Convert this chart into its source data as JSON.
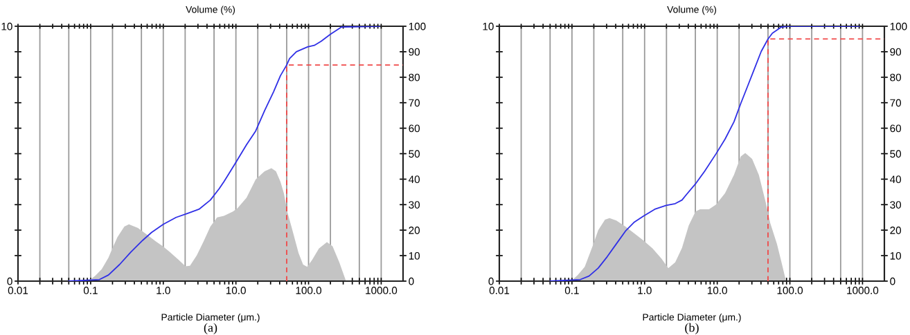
{
  "chart_data": [
    {
      "type": "area",
      "title": "Volume (%)",
      "xlabel": "Particle Diameter (μm.)",
      "annotations": [
        "(a)"
      ],
      "log": "x",
      "xlim": [
        0.01,
        2000
      ],
      "xticks": [
        {
          "value": 0.01,
          "label": "0.01"
        },
        {
          "value": 0.02,
          "label": null
        },
        {
          "value": 0.03,
          "label": null
        },
        {
          "value": 0.04,
          "label": null
        },
        {
          "value": 0.05,
          "label": null
        },
        {
          "value": 0.06,
          "label": null
        },
        {
          "value": 0.07,
          "label": null
        },
        {
          "value": 0.08,
          "label": null
        },
        {
          "value": 0.09,
          "label": null
        },
        {
          "value": 0.1,
          "label": "0.1"
        },
        {
          "value": 0.2,
          "label": null
        },
        {
          "value": 0.3,
          "label": null
        },
        {
          "value": 0.4,
          "label": null
        },
        {
          "value": 0.5,
          "label": null
        },
        {
          "value": 0.6,
          "label": null
        },
        {
          "value": 0.7,
          "label": null
        },
        {
          "value": 0.8,
          "label": null
        },
        {
          "value": 0.9,
          "label": null
        },
        {
          "value": 1,
          "label": "1.0"
        },
        {
          "value": 2,
          "label": null
        },
        {
          "value": 3,
          "label": null
        },
        {
          "value": 4,
          "label": null
        },
        {
          "value": 5,
          "label": null
        },
        {
          "value": 6,
          "label": null
        },
        {
          "value": 7,
          "label": null
        },
        {
          "value": 8,
          "label": null
        },
        {
          "value": 9,
          "label": null
        },
        {
          "value": 10,
          "label": "10.0"
        },
        {
          "value": 20,
          "label": null
        },
        {
          "value": 30,
          "label": null
        },
        {
          "value": 40,
          "label": null
        },
        {
          "value": 50,
          "label": null
        },
        {
          "value": 60,
          "label": null
        },
        {
          "value": 70,
          "label": null
        },
        {
          "value": 80,
          "label": null
        },
        {
          "value": 90,
          "label": null
        },
        {
          "value": 100,
          "label": "100.0"
        },
        {
          "value": 200,
          "label": null
        },
        {
          "value": 300,
          "label": null
        },
        {
          "value": 400,
          "label": null
        },
        {
          "value": 500,
          "label": null
        },
        {
          "value": 600,
          "label": null
        },
        {
          "value": 700,
          "label": null
        },
        {
          "value": 800,
          "label": null
        },
        {
          "value": 900,
          "label": null
        },
        {
          "value": 1000,
          "label": "1000.0"
        }
      ],
      "ylim": [
        0,
        10
      ],
      "yticks": [
        {
          "value": 0,
          "label": "0"
        },
        {
          "value": 1,
          "label": null
        },
        {
          "value": 2,
          "label": null
        },
        {
          "value": 3,
          "label": null
        },
        {
          "value": 4,
          "label": null
        },
        {
          "value": 5,
          "label": null
        },
        {
          "value": 6,
          "label": null
        },
        {
          "value": 7,
          "label": null
        },
        {
          "value": 8,
          "label": null
        },
        {
          "value": 9,
          "label": null
        },
        {
          "value": 10,
          "label": "10"
        }
      ],
      "y2lim": [
        0,
        100
      ],
      "y2ticks": [
        0,
        10,
        20,
        30,
        40,
        50,
        60,
        70,
        80,
        90,
        100
      ],
      "ref_lines": [
        {
          "axis": "x",
          "value": 0.02,
          "color": "#9a9a9a"
        },
        {
          "axis": "x",
          "value": 0.05,
          "color": "#9a9a9a"
        },
        {
          "axis": "x",
          "value": 0.1,
          "color": "#9a9a9a"
        },
        {
          "axis": "x",
          "value": 0.2,
          "color": "#9a9a9a"
        },
        {
          "axis": "x",
          "value": 0.5,
          "color": "#9a9a9a"
        },
        {
          "axis": "x",
          "value": 1,
          "color": "#9a9a9a"
        },
        {
          "axis": "x",
          "value": 2,
          "color": "#9a9a9a"
        },
        {
          "axis": "x",
          "value": 5,
          "color": "#9a9a9a"
        },
        {
          "axis": "x",
          "value": 10,
          "color": "#9a9a9a"
        },
        {
          "axis": "x",
          "value": 20,
          "color": "#9a9a9a"
        },
        {
          "axis": "x",
          "value": 50,
          "color": "#9a9a9a"
        },
        {
          "axis": "x",
          "value": 100,
          "color": "#9a9a9a"
        },
        {
          "axis": "x",
          "value": 200,
          "color": "#9a9a9a"
        },
        {
          "axis": "x",
          "value": 500,
          "color": "#9a9a9a"
        },
        {
          "axis": "x",
          "value": 1000,
          "color": "#9a9a9a"
        }
      ],
      "series": [
        {
          "color": "#c4c4c4",
          "x": [
            0.092,
            0.115,
            0.142,
            0.176,
            0.196,
            0.234,
            0.291,
            0.336,
            0.447,
            0.597,
            0.795,
            0.985,
            1.22,
            1.63,
            2.02,
            2.33,
            2.89,
            3.58,
            4.45,
            5.51,
            6.84,
            9.1,
            10.5,
            14.0,
            18.7,
            24.8,
            30.8,
            35.6,
            41,
            45.7,
            50.9,
            58.8,
            72.9,
            84.1,
            95.7,
            112,
            139,
            179,
            214,
            265,
            328
          ],
          "values": [
            0,
            0.2,
            0.47,
            0.92,
            1.24,
            1.73,
            2.14,
            2.23,
            2.09,
            1.82,
            1.55,
            1.37,
            1.15,
            0.83,
            0.58,
            0.6,
            1.01,
            1.55,
            2.14,
            2.5,
            2.56,
            2.73,
            2.86,
            3.27,
            3.99,
            4.31,
            4.43,
            4.31,
            3.9,
            3.45,
            2.73,
            2.09,
            1.1,
            0.65,
            0.56,
            0.83,
            1.28,
            1.53,
            1.37,
            0.74,
            0
          ]
        },
        {
          "type": "line",
          "axis": "y2",
          "color": "#2f2fe6",
          "x": [
            0.05,
            0.132,
            0.176,
            0.25,
            0.36,
            0.52,
            0.69,
            1.0,
            1.5,
            2.17,
            3.1,
            4.45,
            5.9,
            6.84,
            9.8,
            14,
            18.7,
            24.9,
            33,
            41,
            50,
            54.7,
            68,
            97,
            120,
            149,
            199,
            285,
            950
          ],
          "values": [
            0,
            0.6,
            2.4,
            6.5,
            11.5,
            16,
            19.1,
            22.3,
            25,
            26.6,
            28.2,
            31.8,
            36.3,
            39,
            46.2,
            53.5,
            58.9,
            67,
            74.3,
            80.6,
            84.8,
            87.3,
            90,
            91.9,
            92.5,
            94.1,
            96.8,
            99.7,
            100
          ]
        },
        {
          "type": "line",
          "axis": "y2",
          "color": "#f04848",
          "line_style": "dashed",
          "x": [
            50,
            50,
            2000
          ],
          "values": [
            0,
            84.8,
            84.8
          ]
        }
      ]
    },
    {
      "type": "area",
      "title": "Volume (%)",
      "xlabel": "Particle Diameter (μm.)",
      "annotations": [
        "(b)"
      ],
      "log": "x",
      "xlim": [
        0.01,
        2000
      ],
      "xticks": [
        {
          "value": 0.01,
          "label": "0.01"
        },
        {
          "value": 0.02,
          "label": null
        },
        {
          "value": 0.03,
          "label": null
        },
        {
          "value": 0.04,
          "label": null
        },
        {
          "value": 0.05,
          "label": null
        },
        {
          "value": 0.06,
          "label": null
        },
        {
          "value": 0.07,
          "label": null
        },
        {
          "value": 0.08,
          "label": null
        },
        {
          "value": 0.09,
          "label": null
        },
        {
          "value": 0.1,
          "label": "0.1"
        },
        {
          "value": 0.2,
          "label": null
        },
        {
          "value": 0.3,
          "label": null
        },
        {
          "value": 0.4,
          "label": null
        },
        {
          "value": 0.5,
          "label": null
        },
        {
          "value": 0.6,
          "label": null
        },
        {
          "value": 0.7,
          "label": null
        },
        {
          "value": 0.8,
          "label": null
        },
        {
          "value": 0.9,
          "label": null
        },
        {
          "value": 1,
          "label": "1.0"
        },
        {
          "value": 2,
          "label": null
        },
        {
          "value": 3,
          "label": null
        },
        {
          "value": 4,
          "label": null
        },
        {
          "value": 5,
          "label": null
        },
        {
          "value": 6,
          "label": null
        },
        {
          "value": 7,
          "label": null
        },
        {
          "value": 8,
          "label": null
        },
        {
          "value": 9,
          "label": null
        },
        {
          "value": 10,
          "label": "10.0"
        },
        {
          "value": 20,
          "label": null
        },
        {
          "value": 30,
          "label": null
        },
        {
          "value": 40,
          "label": null
        },
        {
          "value": 50,
          "label": null
        },
        {
          "value": 60,
          "label": null
        },
        {
          "value": 70,
          "label": null
        },
        {
          "value": 80,
          "label": null
        },
        {
          "value": 90,
          "label": null
        },
        {
          "value": 100,
          "label": "100.0"
        },
        {
          "value": 200,
          "label": null
        },
        {
          "value": 300,
          "label": null
        },
        {
          "value": 400,
          "label": null
        },
        {
          "value": 500,
          "label": null
        },
        {
          "value": 600,
          "label": null
        },
        {
          "value": 700,
          "label": null
        },
        {
          "value": 800,
          "label": null
        },
        {
          "value": 900,
          "label": null
        },
        {
          "value": 1000,
          "label": "1000.0"
        }
      ],
      "ylim": [
        0,
        10
      ],
      "yticks": [
        {
          "value": 0,
          "label": "0"
        },
        {
          "value": 1,
          "label": null
        },
        {
          "value": 2,
          "label": null
        },
        {
          "value": 3,
          "label": null
        },
        {
          "value": 4,
          "label": null
        },
        {
          "value": 5,
          "label": null
        },
        {
          "value": 6,
          "label": null
        },
        {
          "value": 7,
          "label": null
        },
        {
          "value": 8,
          "label": null
        },
        {
          "value": 9,
          "label": null
        },
        {
          "value": 10,
          "label": "10"
        }
      ],
      "y2lim": [
        0,
        100
      ],
      "y2ticks": [
        0,
        10,
        20,
        30,
        40,
        50,
        60,
        70,
        80,
        90,
        100
      ],
      "ref_lines": [
        {
          "axis": "x",
          "value": 0.02,
          "color": "#9a9a9a"
        },
        {
          "axis": "x",
          "value": 0.05,
          "color": "#9a9a9a"
        },
        {
          "axis": "x",
          "value": 0.1,
          "color": "#9a9a9a"
        },
        {
          "axis": "x",
          "value": 0.2,
          "color": "#9a9a9a"
        },
        {
          "axis": "x",
          "value": 0.5,
          "color": "#9a9a9a"
        },
        {
          "axis": "x",
          "value": 1,
          "color": "#9a9a9a"
        },
        {
          "axis": "x",
          "value": 2,
          "color": "#9a9a9a"
        },
        {
          "axis": "x",
          "value": 5,
          "color": "#9a9a9a"
        },
        {
          "axis": "x",
          "value": 10,
          "color": "#9a9a9a"
        },
        {
          "axis": "x",
          "value": 20,
          "color": "#9a9a9a"
        },
        {
          "axis": "x",
          "value": 50,
          "color": "#9a9a9a"
        },
        {
          "axis": "x",
          "value": 100,
          "color": "#9a9a9a"
        },
        {
          "axis": "x",
          "value": 200,
          "color": "#9a9a9a"
        },
        {
          "axis": "x",
          "value": 500,
          "color": "#9a9a9a"
        },
        {
          "axis": "x",
          "value": 1000,
          "color": "#9a9a9a"
        }
      ],
      "series": [
        {
          "color": "#c4c4c4",
          "x": [
            0.097,
            0.12,
            0.15,
            0.192,
            0.23,
            0.285,
            0.329,
            0.408,
            0.544,
            0.724,
            0.96,
            1.29,
            1.71,
            2.12,
            2.64,
            3.27,
            4.05,
            5.02,
            5.8,
            7.7,
            9.6,
            12.8,
            17,
            21.1,
            24.3,
            30.2,
            37.4,
            46.5,
            53.6,
            66.4,
            76.7,
            88.5
          ],
          "values": [
            0,
            0.24,
            0.56,
            1.37,
            2.0,
            2.41,
            2.47,
            2.38,
            2.14,
            1.87,
            1.6,
            1.28,
            0.88,
            0.51,
            0.74,
            1.3,
            2.18,
            2.73,
            2.82,
            2.82,
            3.0,
            3.45,
            4.17,
            4.89,
            5.03,
            4.8,
            4.17,
            3.09,
            2.28,
            1.46,
            0.74,
            0
          ]
        },
        {
          "type": "line",
          "axis": "y2",
          "color": "#2f2fe6",
          "x": [
            0.05,
            0.13,
            0.172,
            0.23,
            0.306,
            0.408,
            0.544,
            0.724,
            0.96,
            1.38,
            1.98,
            2.64,
            3.27,
            3.78,
            5.0,
            6.7,
            9.6,
            12.8,
            17,
            21.1,
            26.2,
            32.5,
            40.3,
            50,
            57.5,
            76.7,
            95,
            900
          ],
          "values": [
            0,
            0.6,
            2,
            5.1,
            9.6,
            14.6,
            19.6,
            23.2,
            25.5,
            28.2,
            29.7,
            30.4,
            31.8,
            34,
            38.1,
            43.1,
            49.9,
            55.7,
            62.5,
            69.7,
            76.5,
            83.3,
            90.1,
            95,
            97.3,
            99.7,
            100,
            100
          ]
        },
        {
          "type": "line",
          "axis": "y2",
          "color": "#f04848",
          "line_style": "dashed",
          "x": [
            50,
            50,
            2000
          ],
          "values": [
            0,
            95,
            95
          ]
        }
      ]
    }
  ]
}
